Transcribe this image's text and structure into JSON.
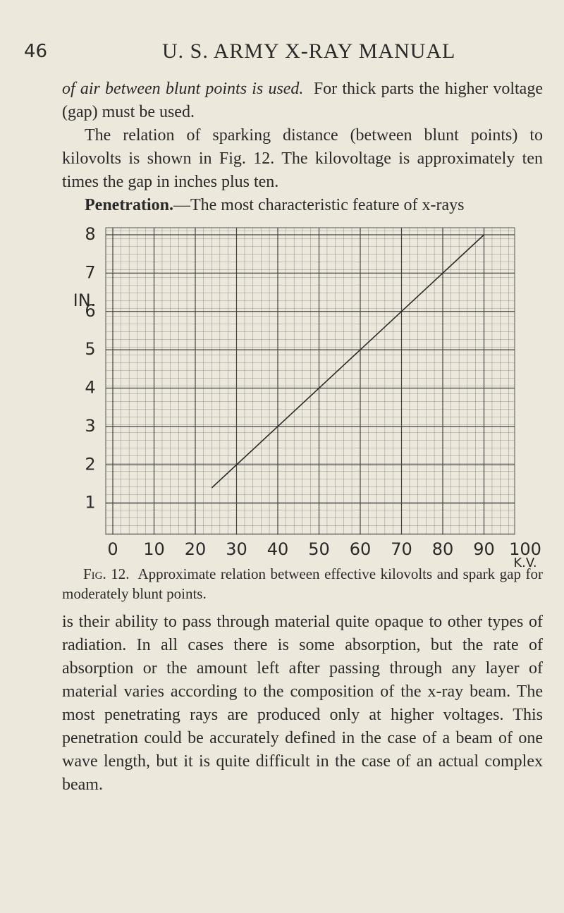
{
  "header": {
    "page_number": "46",
    "title": "U. S. ARMY X-RAY MANUAL"
  },
  "paragraphs": [
    {
      "italic": "of air between blunt points is used.",
      "text": "For thick parts the higher voltage (gap) must be used."
    },
    {
      "text": "The relation of sparking distance (between blunt points) to kilovolts is shown in Fig. 12. The kilovoltage is approximately ten times the gap in inches plus ten."
    },
    {
      "heading": "Penetration.",
      "text": "—The most characteristic feature of x-rays"
    }
  ],
  "chart_data": {
    "type": "line",
    "xlabel": "K.V.",
    "ylabel": "IN.",
    "x": [
      24,
      90
    ],
    "values": [
      1.4,
      8
    ],
    "color": "#2a2a2a",
    "xlim": [
      0,
      100
    ],
    "xticks": [
      0,
      10,
      20,
      30,
      40,
      50,
      60,
      70,
      80,
      90,
      100
    ],
    "ylim": [
      0,
      8
    ],
    "yticks": [
      1,
      2,
      3,
      4,
      5,
      6,
      7,
      8
    ],
    "grid": true
  },
  "caption": {
    "label": "Fig. 12.",
    "text": "Approximate relation between effective kilovolts and spark gap for moderately blunt points."
  },
  "continuation": "is their ability to pass through material quite opaque to other types of radiation. In all cases there is some absorption, but the rate of absorption or the amount left after passing through any layer of material varies according to the composition of the x-ray beam. The most penetrating rays are produced only at higher voltages. This penetration could be accurately defined in the case of a beam of one wave length, but it is quite difficult in the case of an actual complex beam."
}
